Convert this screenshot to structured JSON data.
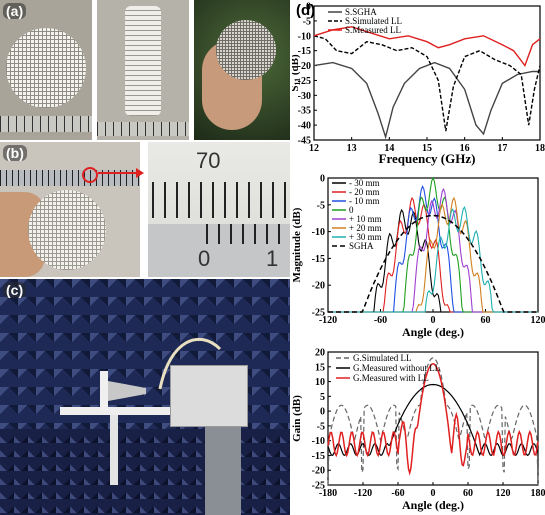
{
  "panels": {
    "a": {
      "label": "(a)"
    },
    "b": {
      "label": "(b)",
      "zoom_reading": "70",
      "zoom_zero": "0",
      "zoom_one": "1"
    },
    "c": {
      "label": "(c)"
    },
    "d": {
      "label": "(d)"
    }
  },
  "chart_data": [
    {
      "type": "line",
      "id": "s11",
      "xlabel": "Frequency (GHz)",
      "ylabel_main": "S",
      "ylabel_sub": "11",
      "ylabel_unit": " (dB)",
      "xlim": [
        12,
        18
      ],
      "ylim": [
        -45,
        0
      ],
      "xticks": [
        12,
        13,
        14,
        15,
        16,
        17,
        18
      ],
      "yticks": [
        0,
        -5,
        -10,
        -15,
        -20,
        -25,
        -30,
        -35,
        -40,
        -45
      ],
      "series": [
        {
          "name": "S.SGHA",
          "color": "#444444",
          "dash": "",
          "x": [
            12,
            12.5,
            13,
            13.4,
            13.7,
            13.9,
            14.1,
            14.4,
            14.8,
            15.2,
            15.6,
            16,
            16.3,
            16.5,
            16.7,
            17,
            17.4,
            17.8,
            18
          ],
          "y": [
            -20,
            -19,
            -21,
            -26,
            -36,
            -44,
            -34,
            -26,
            -21,
            -19,
            -21,
            -28,
            -40,
            -43,
            -35,
            -26,
            -23,
            -22,
            -22
          ]
        },
        {
          "name": "S.Simulated LL",
          "color": "#000000",
          "dash": "4,2",
          "x": [
            12,
            12.3,
            12.6,
            13,
            13.4,
            13.8,
            14.2,
            14.6,
            15,
            15.3,
            15.5,
            15.7,
            16,
            16.4,
            16.8,
            17.2,
            17.5,
            17.7,
            17.85,
            18
          ],
          "y": [
            -10,
            -11,
            -15,
            -16,
            -12,
            -13,
            -15,
            -14,
            -17,
            -25,
            -42,
            -27,
            -17,
            -15,
            -18,
            -20,
            -23,
            -40,
            -28,
            -20
          ]
        },
        {
          "name": "S.Measured LL",
          "color": "#e02020",
          "dash": "",
          "x": [
            12,
            12.5,
            13,
            13.5,
            14,
            14.5,
            15,
            15.3,
            15.6,
            16,
            16.5,
            17,
            17.3,
            17.6,
            17.8,
            18
          ],
          "y": [
            -10,
            -8,
            -7,
            -9,
            -11,
            -10,
            -12,
            -14,
            -13,
            -11,
            -10,
            -13,
            -15,
            -20,
            -13,
            -11
          ]
        }
      ]
    },
    {
      "type": "line",
      "id": "scan",
      "xlabel": "Angle (deg.)",
      "ylabel": "Magnitude (dB)",
      "xlim": [
        -120,
        120
      ],
      "ylim": [
        -25,
        0
      ],
      "xticks": [
        -120,
        -60,
        0,
        60,
        120
      ],
      "yticks": [
        0,
        -5,
        -10,
        -15,
        -20,
        -25
      ],
      "series": [
        {
          "name": "- 30 mm",
          "color": "#000000",
          "dash": "",
          "center": -30,
          "peak": -5.5,
          "width": 16
        },
        {
          "name": "- 20 mm",
          "color": "#e02020",
          "dash": "",
          "center": -20,
          "peak": -3.5,
          "width": 15
        },
        {
          "name": "- 10 mm",
          "color": "#2050e0",
          "dash": "",
          "center": -10,
          "peak": -1.5,
          "width": 14
        },
        {
          "name": "0",
          "color": "#20a020",
          "dash": "",
          "center": 0,
          "peak": 0,
          "width": 13
        },
        {
          "name": "+ 10 mm",
          "color": "#a040d0",
          "dash": "",
          "center": 10,
          "peak": -2,
          "width": 14
        },
        {
          "name": "+ 20 mm",
          "color": "#d08020",
          "dash": "",
          "center": 20,
          "peak": -3.5,
          "width": 15
        },
        {
          "name": "+ 30 mm",
          "color": "#20b0b0",
          "dash": "",
          "center": 30,
          "peak": -5,
          "width": 16
        },
        {
          "name": "SGHA",
          "color": "#000000",
          "dash": "5,3",
          "center": 0,
          "peak": -7,
          "width": 34
        }
      ]
    },
    {
      "type": "line",
      "id": "gain",
      "xlabel": "Angle (deg.)",
      "ylabel": "Gain (dB)",
      "xlim": [
        -180,
        180
      ],
      "ylim": [
        -25,
        20
      ],
      "xticks": [
        -180,
        -120,
        -60,
        0,
        60,
        120,
        180
      ],
      "yticks": [
        20,
        15,
        10,
        5,
        0,
        -5,
        -10,
        -15,
        -20,
        -25
      ],
      "series": [
        {
          "name": "G.Simulated LL",
          "color": "#666666",
          "dash": "5,3"
        },
        {
          "name": "G.Measured without LL",
          "color": "#000000",
          "dash": ""
        },
        {
          "name": "G.Measured with LL",
          "color": "#e02020",
          "dash": ""
        }
      ]
    }
  ]
}
